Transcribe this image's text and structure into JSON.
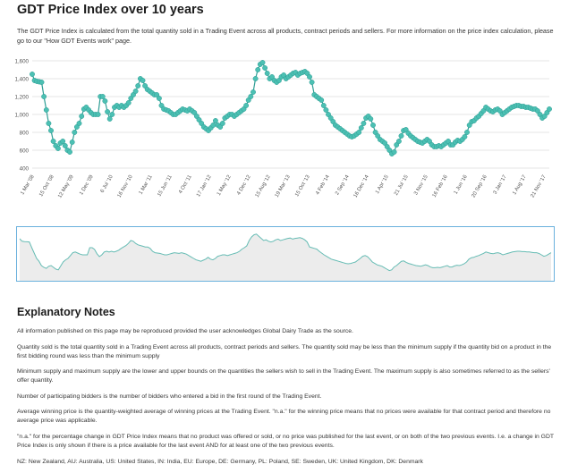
{
  "title": "GDT Price Index over 10 years",
  "intro": "The GDT Price Index is calculated from the total quantity sold in a Trading Event across all products, contract periods and sellers. For more information on the price index calculation, please go to our \"How GDT Events work\" page.",
  "notes_title": "Explanatory Notes",
  "notes": [
    "All information published on this page may be reproduced provided the user acknowledges Global Dairy Trade as the source.",
    "Quantity sold is the total quantity sold in a Trading Event across all products, contract periods and sellers. The quantity sold may be less than the minimum supply if the quantity bid on a product in the first bidding round was less than the minimum supply",
    "Minimum supply and maximum supply are the lower and upper bounds on the quantities the sellers wish to sell in the Trading Event. The maximum supply is also sometimes referred to as the sellers' offer quantity.",
    "Number of participating bidders is the number of bidders who entered a bid in the first round of the Trading Event.",
    "Average winning price is the quantity-weighted average of winning prices at the Trading Event.  \"n.a.\" for the winning price means that no prices were available for that contract period and therefore no average price was applicable.",
    "\"n.a.\" for the percentage change in GDT Price Index means that no product was offered or sold, or no price was published for the last event, or on both of the two previous events.  I.e. a change in GDT Price Index is only shown if there is a price available for the last event AND for at least one of the two previous events.",
    "NZ: New Zealand, AU: Australia, US: United States, IN: India, EU: Europe, DE: Germany, PL: Poland, SE: Sweden, UK: United Kingdom, DK: Denmark"
  ],
  "chart_data": {
    "type": "line",
    "title": "",
    "xlabel": "",
    "ylabel": "",
    "ylim": [
      400,
      1600
    ],
    "yticks": [
      400,
      600,
      800,
      1000,
      1200,
      1400,
      1600
    ],
    "ytick_labels": [
      "400",
      "600",
      "800",
      "1,000",
      "1,200",
      "1,400",
      "1,600"
    ],
    "xtick_labels": [
      "1 Mar '08",
      "15 Oct '08",
      "12 May '09",
      "1 Dec '09",
      "6 Jul '10",
      "16 Nov '10",
      "1 Mar '11",
      "15 Jun '11",
      "4 Oct '11",
      "17 Jan '12",
      "1 May '12",
      "4 Dec '12",
      "15 Aug '12",
      "19 Mar '13",
      "15 Oct '13",
      "4 Feb '14",
      "2 Sep '14",
      "16 Dec '14",
      "1 Apr '15",
      "21 Jul '15",
      "3 Nov '15",
      "16 Feb '16",
      "1 Jun '16",
      "20 Sep '16",
      "3 Jan '17",
      "1 Aug '17",
      "21 Nov '17"
    ],
    "grid": true,
    "legend": "none",
    "line_color": "#2f9e95",
    "marker_color": "#4cc0b3",
    "navigator_fill": "#ececec",
    "navigator_stroke": "#66bcb4",
    "navigator_border": "#6ab1dd",
    "series": [
      {
        "values": [
          1450,
          1380,
          1370,
          1365,
          1360,
          1200,
          1050,
          900,
          820,
          700,
          650,
          620,
          680,
          700,
          650,
          600,
          580,
          690,
          800,
          860,
          900,
          980,
          1060,
          1080,
          1050,
          1020,
          1000,
          1000,
          1000,
          1200,
          1200,
          1150,
          1030,
          950,
          1000,
          1080,
          1100,
          1080,
          1100,
          1080,
          1100,
          1130,
          1180,
          1220,
          1260,
          1320,
          1400,
          1380,
          1320,
          1280,
          1260,
          1240,
          1220,
          1220,
          1180,
          1100,
          1060,
          1050,
          1040,
          1020,
          1000,
          1000,
          1020,
          1040,
          1060,
          1050,
          1040,
          1060,
          1040,
          1020,
          980,
          940,
          900,
          860,
          840,
          820,
          850,
          880,
          930,
          880,
          860,
          900,
          960,
          980,
          1000,
          1000,
          980,
          1000,
          1020,
          1040,
          1060,
          1100,
          1160,
          1200,
          1250,
          1400,
          1500,
          1560,
          1580,
          1520,
          1460,
          1400,
          1420,
          1380,
          1360,
          1380,
          1420,
          1440,
          1400,
          1420,
          1440,
          1460,
          1470,
          1440,
          1460,
          1470,
          1480,
          1460,
          1420,
          1360,
          1220,
          1200,
          1180,
          1160,
          1100,
          1050,
          1000,
          960,
          920,
          880,
          860,
          840,
          820,
          800,
          780,
          760,
          750,
          760,
          780,
          800,
          850,
          900,
          960,
          980,
          950,
          880,
          800,
          760,
          720,
          700,
          680,
          640,
          600,
          560,
          580,
          660,
          700,
          760,
          820,
          830,
          790,
          760,
          740,
          720,
          700,
          690,
          680,
          700,
          720,
          700,
          660,
          640,
          640,
          650,
          640,
          660,
          680,
          700,
          660,
          660,
          690,
          710,
          700,
          720,
          750,
          800,
          880,
          920,
          930,
          960,
          980,
          1010,
          1040,
          1080,
          1060,
          1040,
          1030,
          1050,
          1060,
          1040,
          1000,
          1020,
          1040,
          1060,
          1080,
          1090,
          1100,
          1100,
          1090,
          1090,
          1080,
          1080,
          1070,
          1060,
          1060,
          1040,
          1000,
          960,
          980,
          1020,
          1060
        ]
      }
    ]
  }
}
